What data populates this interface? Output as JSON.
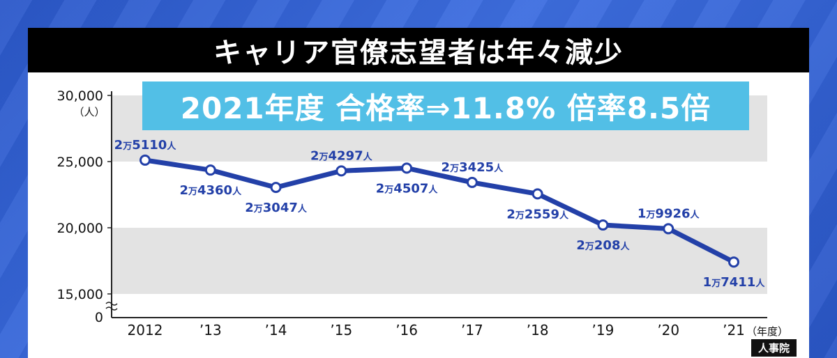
{
  "title": "キャリア官僚志望者は年々減少",
  "banner": "2021年度 合格率⇒11.8%  倍率8.5倍",
  "source": "人事院",
  "chart_data": {
    "type": "line",
    "title": "キャリア官僚志望者は年々減少",
    "ylabel_unit": "（人）",
    "xlabel_unit": "（年度）",
    "ylim": [
      15000,
      30000
    ],
    "y_ticks": [
      "30,000",
      "25,000",
      "20,000",
      "15,000"
    ],
    "y_zero_label": "0",
    "axis_break": true,
    "grid": "alternating bands",
    "categories": [
      "2012",
      "’13",
      "’14",
      "’15",
      "’16",
      "’17",
      "’18",
      "’19",
      "’20",
      "’21"
    ],
    "series": [
      {
        "values": [
          25110,
          24360,
          23047,
          24297,
          24507,
          23425,
          22559,
          20208,
          19926,
          17411
        ],
        "labels": [
          "2万5110人",
          "2万4360人",
          "2万3047人",
          "2万4297人",
          "2万4507人",
          "2万3425人",
          "2万2559人",
          "2万208人",
          "1万9926人",
          "1万7411人"
        ],
        "color": "#2340a8"
      }
    ]
  }
}
